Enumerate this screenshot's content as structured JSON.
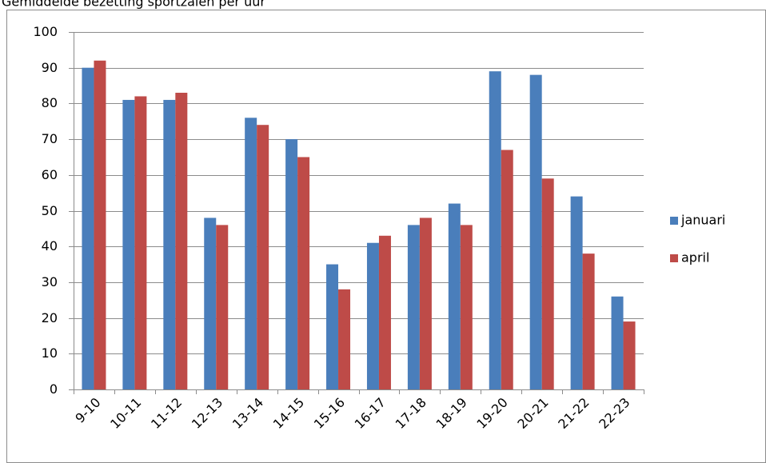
{
  "chart_data": {
    "type": "bar",
    "title": "Gemiddelde bezetting sportzalen per uur",
    "categories": [
      "9-10",
      "10-11",
      "11-12",
      "12-13",
      "13-14",
      "14-15",
      "15-16",
      "16-17",
      "17-18",
      "18-19",
      "19-20",
      "20-21",
      "21-22",
      "22-23"
    ],
    "series": [
      {
        "name": "januari",
        "color": "#4a7ebb",
        "values": [
          90,
          81,
          81,
          48,
          76,
          70,
          35,
          41,
          46,
          52,
          89,
          88,
          54,
          26
        ]
      },
      {
        "name": "april",
        "color": "#be4b48",
        "values": [
          92,
          82,
          83,
          46,
          74,
          65,
          28,
          43,
          48,
          46,
          67,
          59,
          38,
          19
        ]
      }
    ],
    "ylim": [
      0,
      100
    ],
    "yticks": [
      0,
      10,
      20,
      30,
      40,
      50,
      60,
      70,
      80,
      90,
      100
    ],
    "grid": true,
    "legend": "right"
  }
}
